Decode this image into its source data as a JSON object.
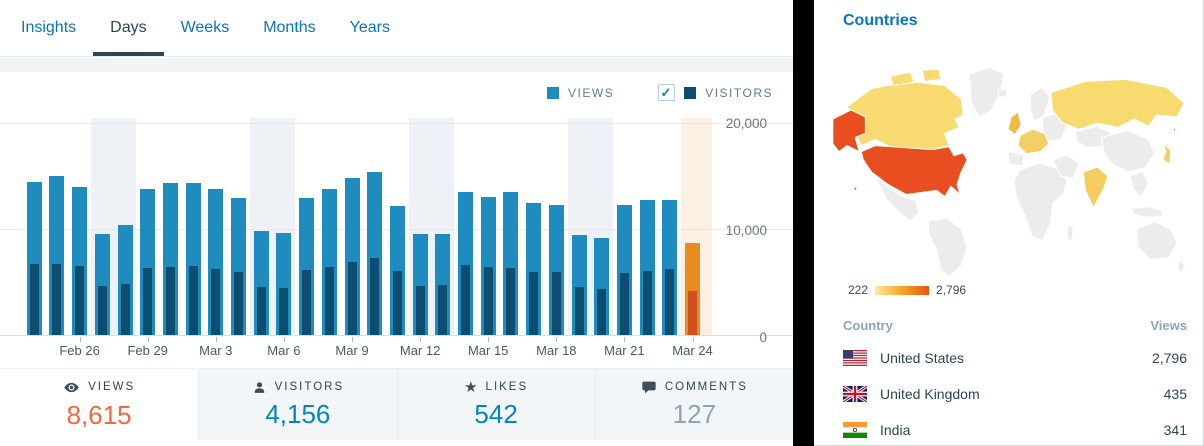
{
  "tabs": {
    "items": [
      {
        "label": "Insights",
        "active": false
      },
      {
        "label": "Days",
        "active": true
      },
      {
        "label": "Weeks",
        "active": false
      },
      {
        "label": "Months",
        "active": false
      },
      {
        "label": "Years",
        "active": false
      }
    ]
  },
  "legend": {
    "views_label": "VIEWS",
    "visitors_label": "VISITORS",
    "views_color": "#1e8cbe",
    "visitors_color": "#0c4d70",
    "visitors_checked": true,
    "check_glyph": "✓"
  },
  "chart_data": {
    "type": "bar",
    "xlabel": "",
    "ylabel": "",
    "ylim": [
      0,
      20000
    ],
    "y_tick_labels": [
      "20,000",
      "10,000",
      "0"
    ],
    "grid": true,
    "legend_position": "top-right",
    "series_names": [
      "Views",
      "Visitors"
    ],
    "colors": {
      "views": "#1e8cbe",
      "visitors": "#0c4d70",
      "selected_views": "#e98a23",
      "selected_visitors": "#d0501e",
      "weekend_band": "#eef2f6",
      "selected_band": "#fbf0e1"
    },
    "weekend_start_indices": [
      3,
      10,
      17,
      24
    ],
    "selected_index": 29,
    "days": [
      {
        "date": "Feb 24",
        "label": "",
        "views": 14400,
        "visitors": 6700
      },
      {
        "date": "Feb 25",
        "label": "",
        "views": 14950,
        "visitors": 6700
      },
      {
        "date": "Feb 26",
        "label": "Feb 26",
        "views": 13900,
        "visitors": 6500
      },
      {
        "date": "Feb 27",
        "label": "",
        "views": 9500,
        "visitors": 4600
      },
      {
        "date": "Feb 28",
        "label": "",
        "views": 10300,
        "visitors": 4800
      },
      {
        "date": "Feb 29",
        "label": "Feb 29",
        "views": 13700,
        "visitors": 6300
      },
      {
        "date": "Mar 1",
        "label": "",
        "views": 14300,
        "visitors": 6400
      },
      {
        "date": "Mar 2",
        "label": "",
        "views": 14300,
        "visitors": 6500
      },
      {
        "date": "Mar 3",
        "label": "Mar 3",
        "views": 13700,
        "visitors": 6200
      },
      {
        "date": "Mar 4",
        "label": "",
        "views": 12900,
        "visitors": 5900
      },
      {
        "date": "Mar 5",
        "label": "",
        "views": 9800,
        "visitors": 4500
      },
      {
        "date": "Mar 6",
        "label": "Mar 6",
        "views": 9600,
        "visitors": 4400
      },
      {
        "date": "Mar 7",
        "label": "",
        "views": 12900,
        "visitors": 6100
      },
      {
        "date": "Mar 8",
        "label": "",
        "views": 13700,
        "visitors": 6400
      },
      {
        "date": "Mar 9",
        "label": "Mar 9",
        "views": 14700,
        "visitors": 6900
      },
      {
        "date": "Mar 10",
        "label": "",
        "views": 15300,
        "visitors": 7200
      },
      {
        "date": "Mar 11",
        "label": "",
        "views": 12100,
        "visitors": 6000
      },
      {
        "date": "Mar 12",
        "label": "Mar 12",
        "views": 9500,
        "visitors": 4600
      },
      {
        "date": "Mar 13",
        "label": "",
        "views": 9500,
        "visitors": 4700
      },
      {
        "date": "Mar 14",
        "label": "",
        "views": 13400,
        "visitors": 6600
      },
      {
        "date": "Mar 15",
        "label": "Mar 15",
        "views": 13000,
        "visitors": 6400
      },
      {
        "date": "Mar 16",
        "label": "",
        "views": 13400,
        "visitors": 6300
      },
      {
        "date": "Mar 17",
        "label": "",
        "views": 12400,
        "visitors": 5900
      },
      {
        "date": "Mar 18",
        "label": "Mar 18",
        "views": 12200,
        "visitors": 5900
      },
      {
        "date": "Mar 19",
        "label": "",
        "views": 9350,
        "visitors": 4500
      },
      {
        "date": "Mar 20",
        "label": "",
        "views": 9100,
        "visitors": 4300
      },
      {
        "date": "Mar 21",
        "label": "Mar 21",
        "views": 12200,
        "visitors": 5800
      },
      {
        "date": "Mar 22",
        "label": "",
        "views": 12700,
        "visitors": 6000
      },
      {
        "date": "Mar 23",
        "label": "",
        "views": 12700,
        "visitors": 6200
      },
      {
        "date": "Mar 24",
        "label": "Mar 24",
        "views": 8615,
        "visitors": 4156
      }
    ]
  },
  "summary": {
    "items": [
      {
        "label": "VIEWS",
        "value": "8,615",
        "icon": "eye-icon",
        "active": true
      },
      {
        "label": "VISITORS",
        "value": "4,156",
        "icon": "person-icon",
        "active": false
      },
      {
        "label": "LIKES",
        "value": "542",
        "icon": "star-icon",
        "active": false
      },
      {
        "label": "COMMENTS",
        "value": "127",
        "icon": "comment-icon",
        "active": false
      }
    ],
    "star_glyph": "★"
  },
  "countries": {
    "title": "Countries",
    "map_legend": {
      "min": "222",
      "max": "2,796"
    },
    "table": {
      "headers": [
        "Country",
        "Views"
      ],
      "rows": [
        {
          "country": "United States",
          "views": "2,796",
          "flag": "us-flag-icon"
        },
        {
          "country": "United Kingdom",
          "views": "435",
          "flag": "uk-flag-icon"
        },
        {
          "country": "India",
          "views": "341",
          "flag": "india-flag-icon"
        }
      ]
    }
  }
}
